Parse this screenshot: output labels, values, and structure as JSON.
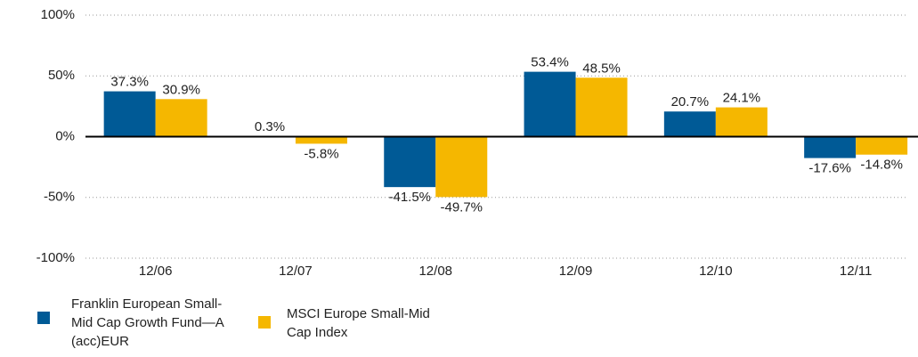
{
  "chart_data": {
    "type": "bar",
    "categories": [
      "12/06",
      "12/07",
      "12/08",
      "12/09",
      "12/10",
      "12/11"
    ],
    "series": [
      {
        "name": "Franklin European Small-Mid Cap Growth Fund—A (acc)EUR",
        "color": "#005a96",
        "values": [
          37.3,
          0.3,
          -41.5,
          53.4,
          20.7,
          -17.6
        ],
        "value_labels": [
          "37.3%",
          "0.3%",
          "-41.5%",
          "53.4%",
          "20.7%",
          "-17.6%"
        ]
      },
      {
        "name": "MSCI Europe Small-Mid Cap Index",
        "color": "#f5b700",
        "values": [
          30.9,
          -5.8,
          -49.7,
          48.5,
          24.1,
          -14.8
        ],
        "value_labels": [
          "30.9%",
          "-5.8%",
          "-49.7%",
          "48.5%",
          "24.1%",
          "-14.8%"
        ]
      }
    ],
    "ylim": [
      -100,
      100
    ],
    "yticks": [
      {
        "value": -100,
        "label": "-100%"
      },
      {
        "value": -50,
        "label": "-50%"
      },
      {
        "value": 0,
        "label": "0%"
      },
      {
        "value": 50,
        "label": "50%"
      },
      {
        "value": 100,
        "label": "100%"
      }
    ],
    "grid": true
  }
}
